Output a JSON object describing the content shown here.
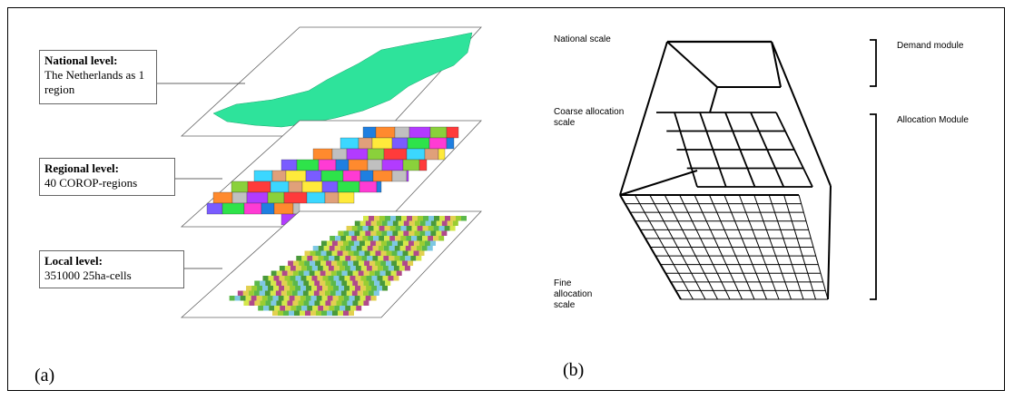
{
  "panel_a": {
    "label": "(a)",
    "levels": [
      {
        "title": "National level:",
        "description": "The Netherlands as 1 region"
      },
      {
        "title": "Regional level:",
        "description": "40 COROP-regions"
      },
      {
        "title": "Local level:",
        "description": "351000 25ha-cells"
      }
    ],
    "colors": {
      "national_fill": "#2ee39b",
      "regions": [
        "#1f7fe0",
        "#ff3b3b",
        "#2ee34a",
        "#b23bff",
        "#ffea3b",
        "#ff8a2e",
        "#3bd7ff",
        "#ff3bd4",
        "#8ad13b",
        "#7a5cff",
        "#c0c0c0",
        "#e0a07a"
      ],
      "local": [
        "#9acd32",
        "#d4e84a",
        "#5bb84a",
        "#b04a8a",
        "#7ec8e3",
        "#e2d050",
        "#4a9a3a"
      ]
    }
  },
  "panel_b": {
    "label": "(b)",
    "scales": [
      "National scale",
      "Coarse allocation scale",
      "Fine allocation scale"
    ],
    "modules": [
      "Demand module",
      "Allocation Module"
    ]
  }
}
